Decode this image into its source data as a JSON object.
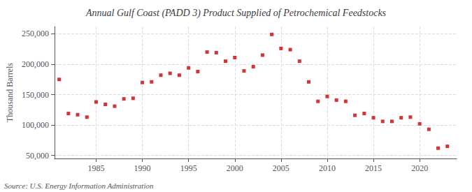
{
  "chart_data": {
    "type": "scatter",
    "title": "Annual Gulf Coast (PADD 3) Product Supplied of Petrochemical Feedstocks",
    "ylabel": "Thousand Barrels",
    "annotations": [
      "Source: U.S. Energy Information Administration"
    ],
    "x": [
      1981,
      1982,
      1983,
      1984,
      1985,
      1986,
      1987,
      1988,
      1989,
      1990,
      1991,
      1992,
      1993,
      1994,
      1995,
      1996,
      1997,
      1998,
      1999,
      2000,
      2001,
      2002,
      2003,
      2004,
      2005,
      2006,
      2007,
      2008,
      2009,
      2010,
      2011,
      2012,
      2013,
      2014,
      2015,
      2016,
      2017,
      2018,
      2019,
      2020,
      2021,
      2022,
      2023
    ],
    "values": [
      175000,
      119000,
      117000,
      113000,
      138000,
      134000,
      131000,
      143000,
      144000,
      170000,
      171000,
      182000,
      185000,
      182000,
      194000,
      188000,
      220000,
      219000,
      205000,
      211000,
      189000,
      196000,
      215000,
      249000,
      226000,
      224000,
      205000,
      171000,
      139000,
      147000,
      141000,
      139000,
      116000,
      119000,
      112000,
      106000,
      106000,
      112000,
      113000,
      102000,
      93000,
      62000,
      65000
    ],
    "color": "#cc0000",
    "marker": "square",
    "xlim": [
      1980.5,
      2024
    ],
    "ylim": [
      45000,
      262000
    ],
    "xticks": [
      1985,
      1990,
      1995,
      2000,
      2005,
      2010,
      2015,
      2020
    ],
    "yticks": [
      {
        "value": 50000,
        "label": "50,000"
      },
      {
        "value": 100000,
        "label": "100,000"
      },
      {
        "value": 150000,
        "label": "150,000"
      },
      {
        "value": 200000,
        "label": "200,000"
      },
      {
        "value": 250000,
        "label": "250,000"
      }
    ],
    "grid": true
  }
}
